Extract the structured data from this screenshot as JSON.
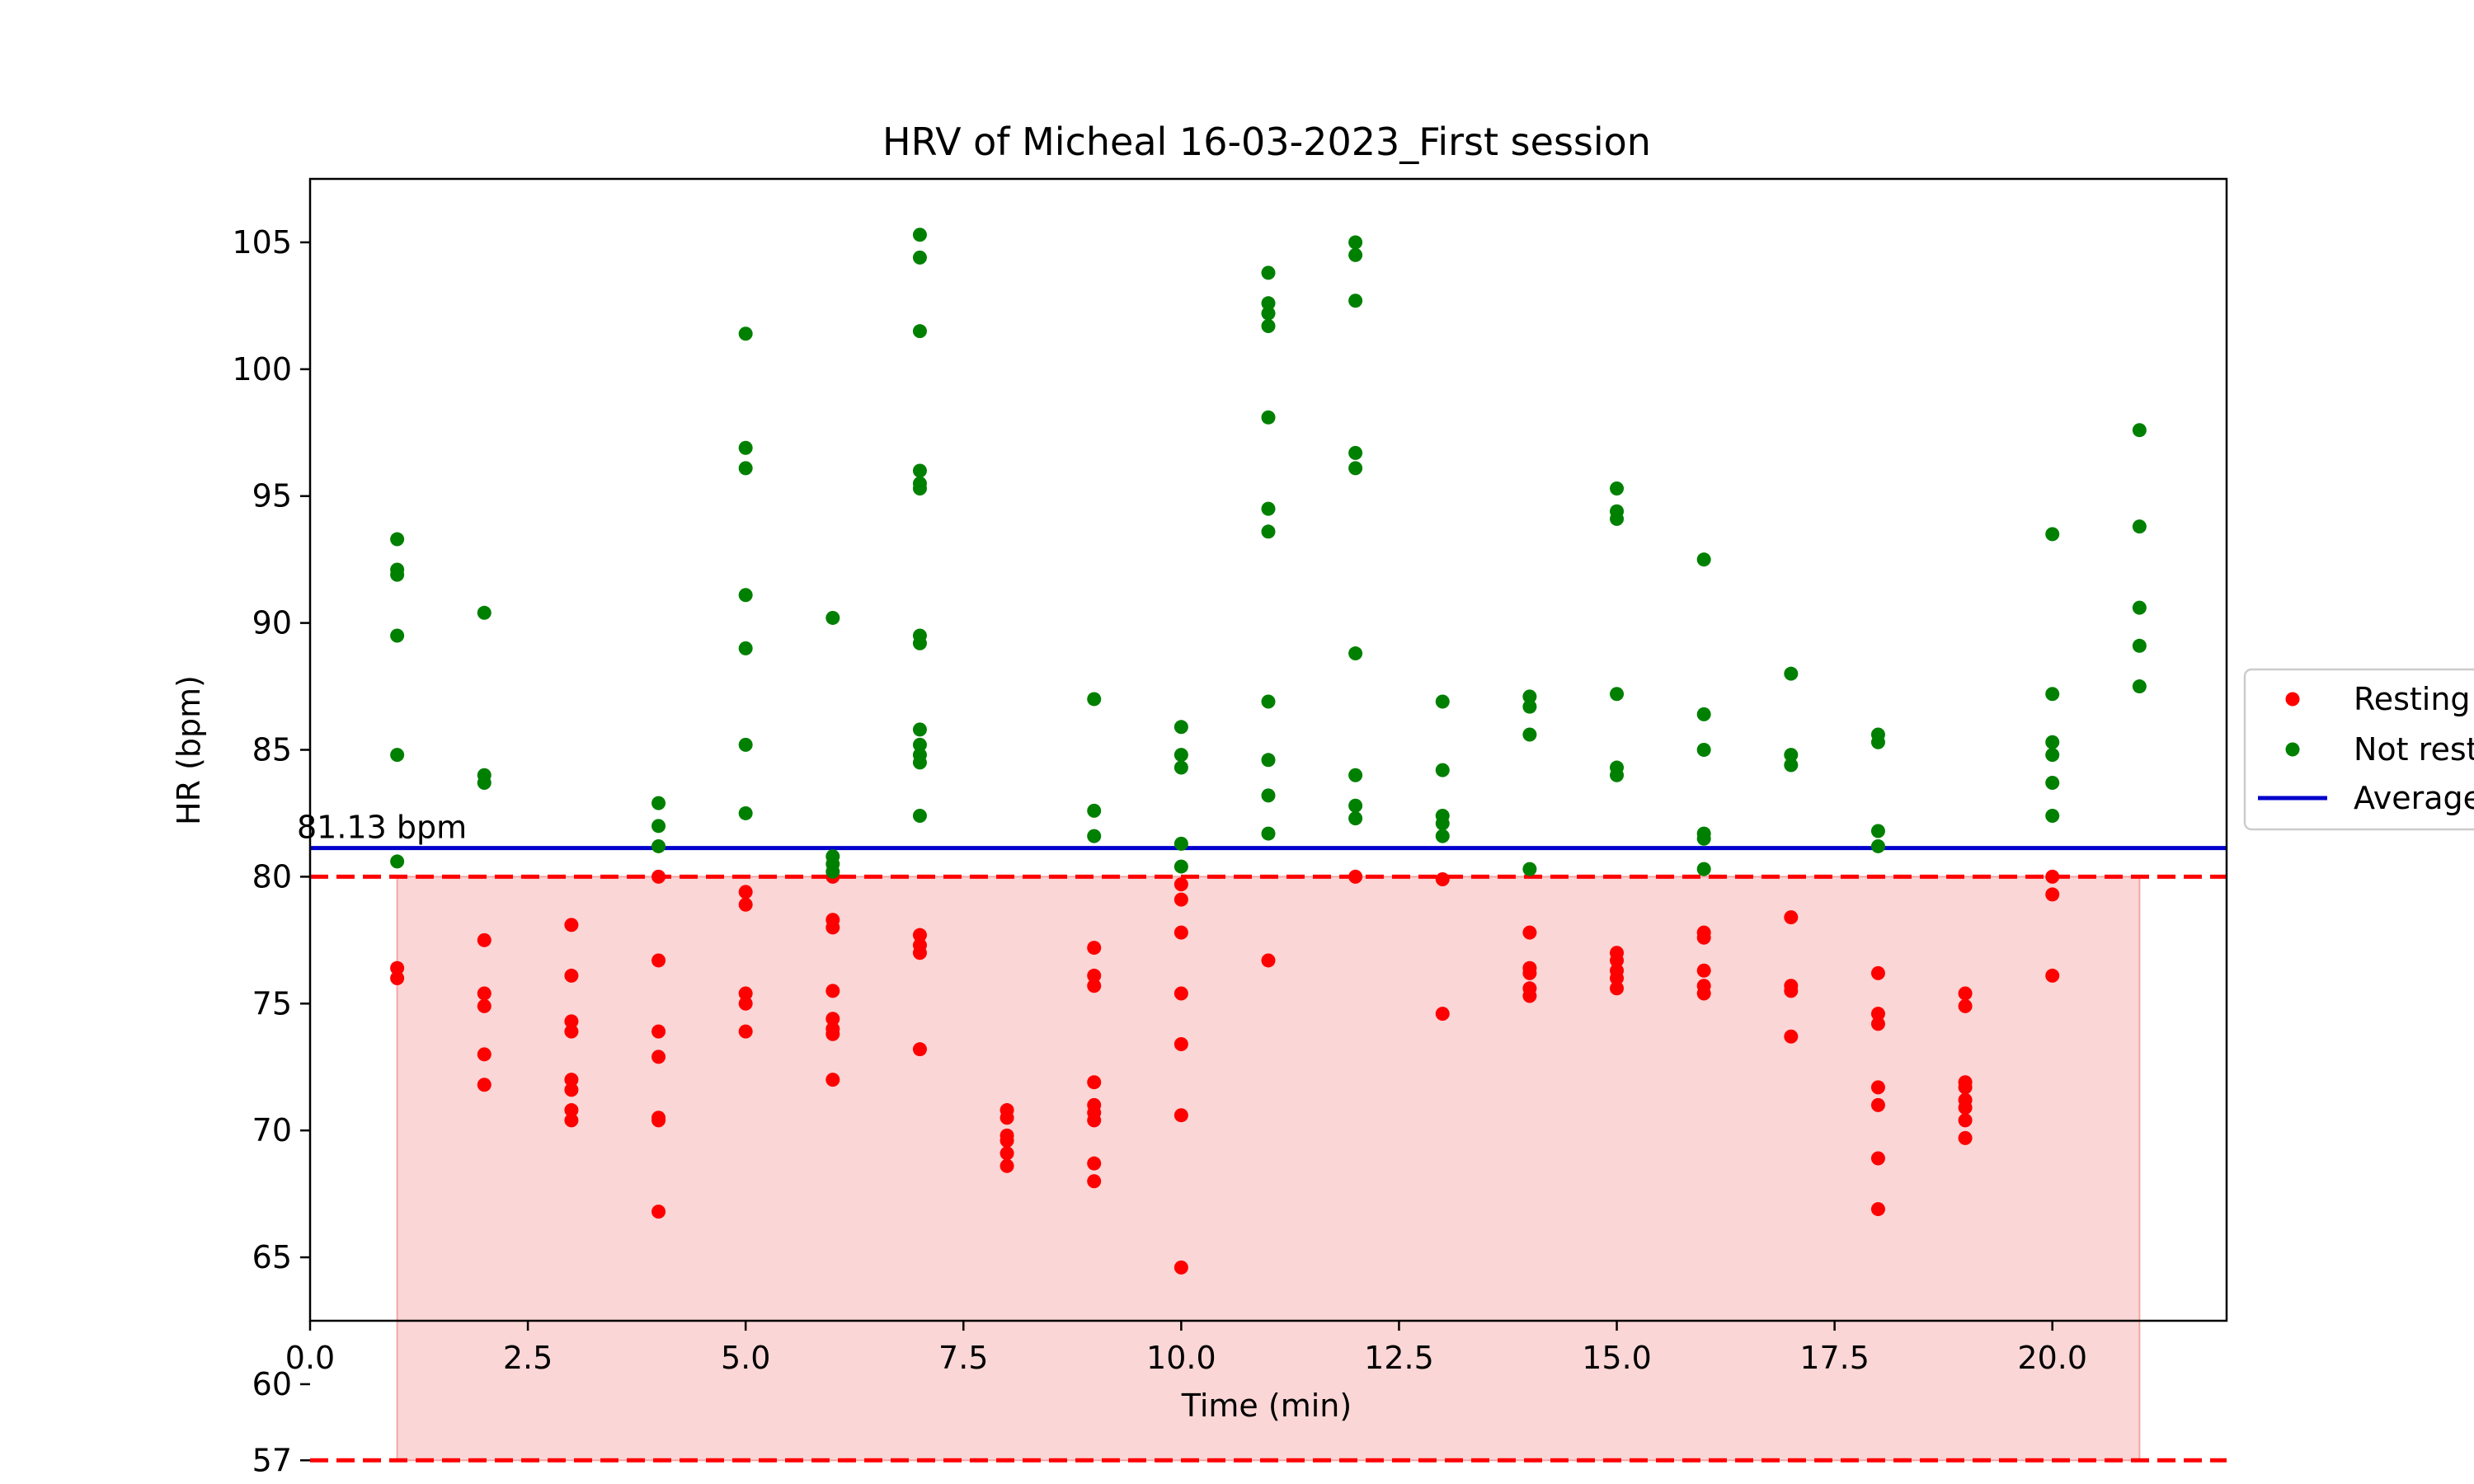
{
  "chart_data": {
    "type": "scatter",
    "title": "HRV of Micheal 16-03-2023_First session",
    "xlabel": "Time (min)",
    "ylabel": "HR (bpm)",
    "xlim": [
      0,
      22
    ],
    "ylim": [
      62.5,
      107.5
    ],
    "x_ticks": [
      0.0,
      2.5,
      5.0,
      7.5,
      10.0,
      12.5,
      15.0,
      17.5,
      20.0
    ],
    "x_tick_labels": [
      "0.0",
      "2.5",
      "5.0",
      "7.5",
      "10.0",
      "12.5",
      "15.0",
      "17.5",
      "20.0"
    ],
    "y_ticks": [
      57,
      60,
      65,
      70,
      75,
      80,
      85,
      90,
      95,
      100,
      105
    ],
    "y_tick_labels": [
      "57",
      "60",
      "65",
      "70",
      "75",
      "80",
      "85",
      "90",
      "95",
      "100",
      "105"
    ],
    "grid": false,
    "legend_position": "center-right",
    "resting_band": {
      "x_range": [
        1,
        21
      ],
      "y_range": [
        57,
        80
      ],
      "color": "#f8c8c8"
    },
    "threshold_lines": [
      {
        "y": 80,
        "color": "#ff0000",
        "style": "dashed"
      },
      {
        "y": 57,
        "color": "#ff0000",
        "style": "dashed"
      }
    ],
    "average": {
      "value": 81.13,
      "label": "81.13 bpm",
      "color": "#0000cc"
    },
    "series": [
      {
        "name": "Resting",
        "color": "#ff0000",
        "points": [
          [
            1,
            76.4
          ],
          [
            1,
            76.0
          ],
          [
            2,
            77.5
          ],
          [
            2,
            75.4
          ],
          [
            2,
            74.9
          ],
          [
            2,
            73.0
          ],
          [
            2,
            71.8
          ],
          [
            3,
            78.1
          ],
          [
            3,
            76.1
          ],
          [
            3,
            74.3
          ],
          [
            3,
            73.9
          ],
          [
            3,
            72.0
          ],
          [
            3,
            71.6
          ],
          [
            3,
            70.8
          ],
          [
            3,
            70.4
          ],
          [
            4,
            80.0
          ],
          [
            4,
            76.7
          ],
          [
            4,
            73.9
          ],
          [
            4,
            72.9
          ],
          [
            4,
            70.5
          ],
          [
            4,
            70.4
          ],
          [
            4,
            66.8
          ],
          [
            5,
            79.4
          ],
          [
            5,
            78.9
          ],
          [
            5,
            75.4
          ],
          [
            5,
            75.0
          ],
          [
            5,
            73.9
          ],
          [
            6,
            80.0
          ],
          [
            6,
            78.3
          ],
          [
            6,
            78.0
          ],
          [
            6,
            75.5
          ],
          [
            6,
            74.4
          ],
          [
            6,
            74.0
          ],
          [
            6,
            73.8
          ],
          [
            6,
            72.0
          ],
          [
            7,
            77.7
          ],
          [
            7,
            77.3
          ],
          [
            7,
            77.0
          ],
          [
            7,
            73.2
          ],
          [
            8,
            70.8
          ],
          [
            8,
            70.5
          ],
          [
            8,
            69.8
          ],
          [
            8,
            69.6
          ],
          [
            8,
            69.1
          ],
          [
            8,
            68.6
          ],
          [
            9,
            77.2
          ],
          [
            9,
            76.1
          ],
          [
            9,
            75.7
          ],
          [
            9,
            71.9
          ],
          [
            9,
            71.0
          ],
          [
            9,
            70.7
          ],
          [
            9,
            70.4
          ],
          [
            9,
            68.7
          ],
          [
            9,
            68.0
          ],
          [
            10,
            79.7
          ],
          [
            10,
            79.1
          ],
          [
            10,
            77.8
          ],
          [
            10,
            75.4
          ],
          [
            10,
            73.4
          ],
          [
            10,
            70.6
          ],
          [
            10,
            64.6
          ],
          [
            11,
            76.7
          ],
          [
            12,
            80.0
          ],
          [
            13,
            79.9
          ],
          [
            13,
            74.6
          ],
          [
            14,
            77.8
          ],
          [
            14,
            76.4
          ],
          [
            14,
            76.2
          ],
          [
            14,
            75.6
          ],
          [
            14,
            75.3
          ],
          [
            15,
            77.0
          ],
          [
            15,
            76.7
          ],
          [
            15,
            76.3
          ],
          [
            15,
            76.0
          ],
          [
            15,
            75.6
          ],
          [
            16,
            77.8
          ],
          [
            16,
            77.6
          ],
          [
            16,
            76.3
          ],
          [
            16,
            75.7
          ],
          [
            16,
            75.4
          ],
          [
            17,
            78.4
          ],
          [
            17,
            75.7
          ],
          [
            17,
            75.5
          ],
          [
            17,
            73.7
          ],
          [
            18,
            76.2
          ],
          [
            18,
            74.6
          ],
          [
            18,
            74.2
          ],
          [
            18,
            71.7
          ],
          [
            18,
            71.0
          ],
          [
            18,
            68.9
          ],
          [
            18,
            66.9
          ],
          [
            19,
            75.4
          ],
          [
            19,
            74.9
          ],
          [
            19,
            71.9
          ],
          [
            19,
            71.7
          ],
          [
            19,
            71.2
          ],
          [
            19,
            70.9
          ],
          [
            19,
            70.4
          ],
          [
            19,
            69.7
          ],
          [
            20,
            80.0
          ],
          [
            20,
            79.3
          ],
          [
            20,
            76.1
          ]
        ]
      },
      {
        "name": "Not resting",
        "color": "#008000",
        "points": [
          [
            1,
            93.3
          ],
          [
            1,
            92.1
          ],
          [
            1,
            91.9
          ],
          [
            1,
            89.5
          ],
          [
            1,
            84.8
          ],
          [
            1,
            80.6
          ],
          [
            2,
            90.4
          ],
          [
            2,
            84.0
          ],
          [
            2,
            83.7
          ],
          [
            4,
            82.9
          ],
          [
            4,
            82.0
          ],
          [
            4,
            81.2
          ],
          [
            5,
            101.4
          ],
          [
            5,
            96.9
          ],
          [
            5,
            96.1
          ],
          [
            5,
            91.1
          ],
          [
            5,
            89.0
          ],
          [
            5,
            85.2
          ],
          [
            5,
            82.5
          ],
          [
            6,
            90.2
          ],
          [
            6,
            80.8
          ],
          [
            6,
            80.5
          ],
          [
            6,
            80.2
          ],
          [
            7,
            105.3
          ],
          [
            7,
            104.4
          ],
          [
            7,
            101.5
          ],
          [
            7,
            96.0
          ],
          [
            7,
            95.5
          ],
          [
            7,
            95.3
          ],
          [
            7,
            89.5
          ],
          [
            7,
            89.2
          ],
          [
            7,
            85.8
          ],
          [
            7,
            85.2
          ],
          [
            7,
            84.8
          ],
          [
            7,
            84.5
          ],
          [
            7,
            82.4
          ],
          [
            9,
            87.0
          ],
          [
            9,
            82.6
          ],
          [
            9,
            81.6
          ],
          [
            10,
            85.9
          ],
          [
            10,
            84.8
          ],
          [
            10,
            84.3
          ],
          [
            10,
            81.3
          ],
          [
            10,
            80.4
          ],
          [
            11,
            103.8
          ],
          [
            11,
            102.6
          ],
          [
            11,
            102.2
          ],
          [
            11,
            101.7
          ],
          [
            11,
            98.1
          ],
          [
            11,
            94.5
          ],
          [
            11,
            93.6
          ],
          [
            11,
            86.9
          ],
          [
            11,
            84.6
          ],
          [
            11,
            83.2
          ],
          [
            11,
            81.7
          ],
          [
            12,
            105.0
          ],
          [
            12,
            104.5
          ],
          [
            12,
            102.7
          ],
          [
            12,
            96.7
          ],
          [
            12,
            96.1
          ],
          [
            12,
            88.8
          ],
          [
            12,
            84.0
          ],
          [
            12,
            82.8
          ],
          [
            12,
            82.3
          ],
          [
            13,
            86.9
          ],
          [
            13,
            84.2
          ],
          [
            13,
            82.4
          ],
          [
            13,
            82.1
          ],
          [
            13,
            81.6
          ],
          [
            14,
            87.1
          ],
          [
            14,
            86.7
          ],
          [
            14,
            85.6
          ],
          [
            14,
            80.3
          ],
          [
            15,
            95.3
          ],
          [
            15,
            94.4
          ],
          [
            15,
            94.1
          ],
          [
            15,
            87.2
          ],
          [
            15,
            84.3
          ],
          [
            15,
            84.0
          ],
          [
            16,
            92.5
          ],
          [
            16,
            86.4
          ],
          [
            16,
            85.0
          ],
          [
            16,
            81.7
          ],
          [
            16,
            81.5
          ],
          [
            16,
            80.3
          ],
          [
            17,
            88.0
          ],
          [
            17,
            84.8
          ],
          [
            17,
            84.4
          ],
          [
            18,
            85.6
          ],
          [
            18,
            85.3
          ],
          [
            18,
            81.8
          ],
          [
            18,
            81.2
          ],
          [
            20,
            93.5
          ],
          [
            20,
            87.2
          ],
          [
            20,
            85.3
          ],
          [
            20,
            84.8
          ],
          [
            20,
            83.7
          ],
          [
            20,
            82.4
          ],
          [
            21,
            97.6
          ],
          [
            21,
            93.8
          ],
          [
            21,
            90.6
          ],
          [
            21,
            89.1
          ],
          [
            21,
            87.5
          ]
        ]
      },
      {
        "name": "Average",
        "color": "#0000cc",
        "type": "line"
      }
    ]
  }
}
